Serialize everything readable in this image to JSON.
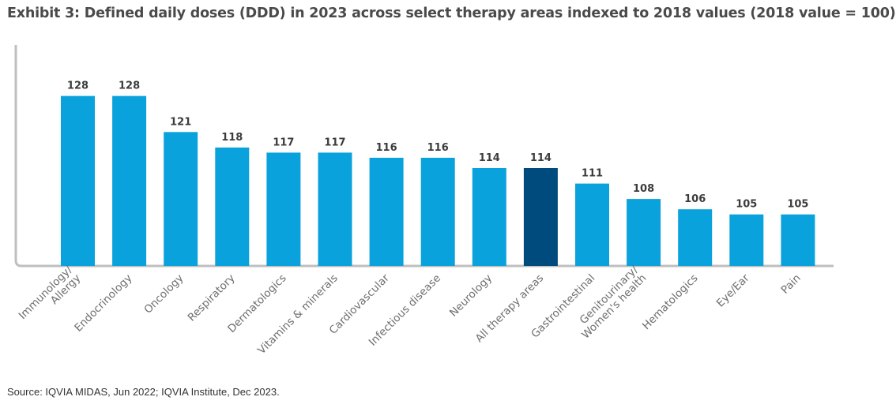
{
  "title": "Exhibit 3: Defined daily doses (DDD) in 2023 across select therapy areas indexed to 2018 values (2018 value = 100)",
  "source": "Source: IQVIA MIDAS, Jun 2022; IQVIA Institute, Dec 2023.",
  "colors": {
    "bar": "#0aa2dc",
    "highlight": "#004b7e",
    "axis": "#bfbfbf"
  },
  "chart_data": {
    "type": "bar",
    "title": "Exhibit 3: Defined daily doses (DDD) in 2023 across select therapy areas indexed to 2018 values (2018 value = 100)",
    "categories": [
      [
        "Immunology/",
        "Allergy"
      ],
      [
        "Endocrinology"
      ],
      [
        "Oncology"
      ],
      [
        "Respiratory"
      ],
      [
        "Dermatologics"
      ],
      [
        "Vitamins & minerals"
      ],
      [
        "Cardiovascular"
      ],
      [
        "Infectious disease"
      ],
      [
        "Neurology"
      ],
      [
        "All therapy areas"
      ],
      [
        "Gastrointestinal"
      ],
      [
        "Genitourinary/",
        "Women's health"
      ],
      [
        "Hematologics"
      ],
      [
        "Eye/Ear"
      ],
      [
        "Pain"
      ]
    ],
    "values": [
      128,
      128,
      121,
      118,
      117,
      117,
      116,
      116,
      114,
      114,
      111,
      108,
      106,
      105,
      105
    ],
    "highlight_index": 9,
    "data_labels": [
      "128",
      "128",
      "121",
      "118",
      "117",
      "117",
      "116",
      "116",
      "114",
      "114",
      "111",
      "108",
      "106",
      "105",
      "105"
    ],
    "ylim": [
      95,
      131
    ],
    "grid": false,
    "xlabel": "",
    "ylabel": ""
  }
}
